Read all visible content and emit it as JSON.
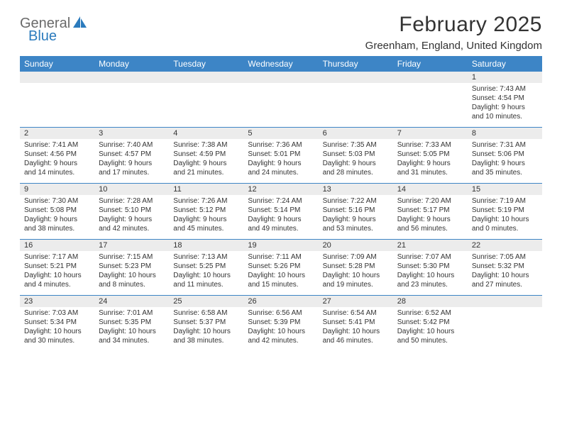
{
  "logo": {
    "text1": "General",
    "text2": "Blue",
    "icon_color": "#2b7bbd"
  },
  "title": "February 2025",
  "location": "Greenham, England, United Kingdom",
  "colors": {
    "header_bg": "#3d85c6",
    "header_text": "#ffffff",
    "daynum_bg": "#ececec",
    "row_border": "#3d85c6",
    "text": "#333333"
  },
  "dow": [
    "Sunday",
    "Monday",
    "Tuesday",
    "Wednesday",
    "Thursday",
    "Friday",
    "Saturday"
  ],
  "weeks": [
    [
      {
        "n": "",
        "sr": "",
        "ss": "",
        "dl": ""
      },
      {
        "n": "",
        "sr": "",
        "ss": "",
        "dl": ""
      },
      {
        "n": "",
        "sr": "",
        "ss": "",
        "dl": ""
      },
      {
        "n": "",
        "sr": "",
        "ss": "",
        "dl": ""
      },
      {
        "n": "",
        "sr": "",
        "ss": "",
        "dl": ""
      },
      {
        "n": "",
        "sr": "",
        "ss": "",
        "dl": ""
      },
      {
        "n": "1",
        "sr": "Sunrise: 7:43 AM",
        "ss": "Sunset: 4:54 PM",
        "dl": "Daylight: 9 hours and 10 minutes."
      }
    ],
    [
      {
        "n": "2",
        "sr": "Sunrise: 7:41 AM",
        "ss": "Sunset: 4:56 PM",
        "dl": "Daylight: 9 hours and 14 minutes."
      },
      {
        "n": "3",
        "sr": "Sunrise: 7:40 AM",
        "ss": "Sunset: 4:57 PM",
        "dl": "Daylight: 9 hours and 17 minutes."
      },
      {
        "n": "4",
        "sr": "Sunrise: 7:38 AM",
        "ss": "Sunset: 4:59 PM",
        "dl": "Daylight: 9 hours and 21 minutes."
      },
      {
        "n": "5",
        "sr": "Sunrise: 7:36 AM",
        "ss": "Sunset: 5:01 PM",
        "dl": "Daylight: 9 hours and 24 minutes."
      },
      {
        "n": "6",
        "sr": "Sunrise: 7:35 AM",
        "ss": "Sunset: 5:03 PM",
        "dl": "Daylight: 9 hours and 28 minutes."
      },
      {
        "n": "7",
        "sr": "Sunrise: 7:33 AM",
        "ss": "Sunset: 5:05 PM",
        "dl": "Daylight: 9 hours and 31 minutes."
      },
      {
        "n": "8",
        "sr": "Sunrise: 7:31 AM",
        "ss": "Sunset: 5:06 PM",
        "dl": "Daylight: 9 hours and 35 minutes."
      }
    ],
    [
      {
        "n": "9",
        "sr": "Sunrise: 7:30 AM",
        "ss": "Sunset: 5:08 PM",
        "dl": "Daylight: 9 hours and 38 minutes."
      },
      {
        "n": "10",
        "sr": "Sunrise: 7:28 AM",
        "ss": "Sunset: 5:10 PM",
        "dl": "Daylight: 9 hours and 42 minutes."
      },
      {
        "n": "11",
        "sr": "Sunrise: 7:26 AM",
        "ss": "Sunset: 5:12 PM",
        "dl": "Daylight: 9 hours and 45 minutes."
      },
      {
        "n": "12",
        "sr": "Sunrise: 7:24 AM",
        "ss": "Sunset: 5:14 PM",
        "dl": "Daylight: 9 hours and 49 minutes."
      },
      {
        "n": "13",
        "sr": "Sunrise: 7:22 AM",
        "ss": "Sunset: 5:16 PM",
        "dl": "Daylight: 9 hours and 53 minutes."
      },
      {
        "n": "14",
        "sr": "Sunrise: 7:20 AM",
        "ss": "Sunset: 5:17 PM",
        "dl": "Daylight: 9 hours and 56 minutes."
      },
      {
        "n": "15",
        "sr": "Sunrise: 7:19 AM",
        "ss": "Sunset: 5:19 PM",
        "dl": "Daylight: 10 hours and 0 minutes."
      }
    ],
    [
      {
        "n": "16",
        "sr": "Sunrise: 7:17 AM",
        "ss": "Sunset: 5:21 PM",
        "dl": "Daylight: 10 hours and 4 minutes."
      },
      {
        "n": "17",
        "sr": "Sunrise: 7:15 AM",
        "ss": "Sunset: 5:23 PM",
        "dl": "Daylight: 10 hours and 8 minutes."
      },
      {
        "n": "18",
        "sr": "Sunrise: 7:13 AM",
        "ss": "Sunset: 5:25 PM",
        "dl": "Daylight: 10 hours and 11 minutes."
      },
      {
        "n": "19",
        "sr": "Sunrise: 7:11 AM",
        "ss": "Sunset: 5:26 PM",
        "dl": "Daylight: 10 hours and 15 minutes."
      },
      {
        "n": "20",
        "sr": "Sunrise: 7:09 AM",
        "ss": "Sunset: 5:28 PM",
        "dl": "Daylight: 10 hours and 19 minutes."
      },
      {
        "n": "21",
        "sr": "Sunrise: 7:07 AM",
        "ss": "Sunset: 5:30 PM",
        "dl": "Daylight: 10 hours and 23 minutes."
      },
      {
        "n": "22",
        "sr": "Sunrise: 7:05 AM",
        "ss": "Sunset: 5:32 PM",
        "dl": "Daylight: 10 hours and 27 minutes."
      }
    ],
    [
      {
        "n": "23",
        "sr": "Sunrise: 7:03 AM",
        "ss": "Sunset: 5:34 PM",
        "dl": "Daylight: 10 hours and 30 minutes."
      },
      {
        "n": "24",
        "sr": "Sunrise: 7:01 AM",
        "ss": "Sunset: 5:35 PM",
        "dl": "Daylight: 10 hours and 34 minutes."
      },
      {
        "n": "25",
        "sr": "Sunrise: 6:58 AM",
        "ss": "Sunset: 5:37 PM",
        "dl": "Daylight: 10 hours and 38 minutes."
      },
      {
        "n": "26",
        "sr": "Sunrise: 6:56 AM",
        "ss": "Sunset: 5:39 PM",
        "dl": "Daylight: 10 hours and 42 minutes."
      },
      {
        "n": "27",
        "sr": "Sunrise: 6:54 AM",
        "ss": "Sunset: 5:41 PM",
        "dl": "Daylight: 10 hours and 46 minutes."
      },
      {
        "n": "28",
        "sr": "Sunrise: 6:52 AM",
        "ss": "Sunset: 5:42 PM",
        "dl": "Daylight: 10 hours and 50 minutes."
      },
      {
        "n": "",
        "sr": "",
        "ss": "",
        "dl": ""
      }
    ]
  ]
}
